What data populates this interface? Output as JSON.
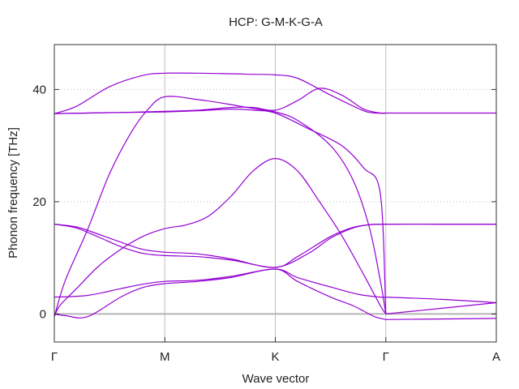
{
  "chart_data": {
    "type": "line",
    "title": "HCP: G-M-K-G-A",
    "xlabel": "Wave vector",
    "ylabel": "Phonon frequency [THz]",
    "xlim": [
      0,
      4
    ],
    "ylim": [
      -5,
      48
    ],
    "x_ticks": [
      {
        "value": 0,
        "label": "Γ"
      },
      {
        "value": 1,
        "label": "M"
      },
      {
        "value": 2,
        "label": "K"
      },
      {
        "value": 3,
        "label": "Γ"
      },
      {
        "value": 4,
        "label": "A"
      }
    ],
    "y_ticks": [
      0,
      20,
      40
    ],
    "grid": {
      "x": true,
      "y_dotted": true
    },
    "zero_line": true,
    "line_color": "#9400d3",
    "zero_line_color": "#b4b4b4",
    "grid_color": "#c0c0c0",
    "series": [
      {
        "x": [
          0,
          0.2,
          0.5,
          0.8,
          1.0,
          1.3,
          1.6,
          1.8,
          2.0,
          2.2,
          2.5,
          2.8,
          2.92,
          3.0,
          3.5,
          4.0
        ],
        "y": [
          35.7,
          37.0,
          40.5,
          42.5,
          42.9,
          42.9,
          42.8,
          42.7,
          42.6,
          42.0,
          39.0,
          36.2,
          35.8,
          35.8,
          35.8,
          35.8
        ]
      },
      {
        "x": [
          0,
          0.3,
          0.6,
          1.0,
          1.3,
          1.6,
          1.8,
          2.0,
          2.2,
          2.4,
          2.6,
          2.8,
          2.95,
          3.0
        ],
        "y": [
          35.7,
          35.8,
          35.9,
          36.1,
          36.3,
          36.8,
          36.8,
          36.3,
          38.0,
          40.2,
          39.0,
          36.5,
          35.8,
          35.8
        ]
      },
      {
        "x": [
          0,
          0.3,
          0.6,
          1.0,
          1.3,
          1.6,
          1.8,
          2.0,
          2.3,
          2.6,
          2.8,
          2.95,
          3.0
        ],
        "y": [
          35.7,
          35.8,
          35.9,
          36.0,
          36.2,
          36.5,
          36.3,
          35.8,
          33.0,
          30.0,
          26.0,
          21.5,
          0.0
        ]
      },
      {
        "x": [
          0,
          0.1,
          0.3,
          0.5,
          0.7,
          0.85,
          1.0,
          1.3,
          1.6,
          1.8,
          2.0,
          2.2,
          2.5,
          2.7,
          2.85,
          2.95,
          3.0
        ],
        "y": [
          -0.5,
          6.0,
          15.0,
          25.0,
          32.5,
          36.5,
          38.7,
          38.2,
          37.3,
          36.6,
          36.0,
          34.5,
          30.0,
          24.0,
          15.5,
          6.0,
          0.0
        ]
      },
      {
        "x": [
          0,
          0.05,
          0.2,
          0.4,
          0.6,
          0.8,
          1.0,
          1.2,
          1.4,
          1.6,
          1.8,
          2.0,
          2.2,
          2.4,
          2.6,
          2.8,
          2.95,
          3.0
        ],
        "y": [
          -0.5,
          1.5,
          4.5,
          8.5,
          11.5,
          13.8,
          15.2,
          15.9,
          17.5,
          21.0,
          25.5,
          27.7,
          25.5,
          20.0,
          14.0,
          7.0,
          1.5,
          0.0
        ]
      },
      {
        "x": [
          0,
          0.2,
          0.4,
          0.6,
          0.8,
          1.0,
          1.3,
          1.6,
          2.0,
          2.3,
          2.5,
          2.7,
          2.85,
          3.0,
          3.5,
          4.0
        ],
        "y": [
          16.0,
          15.5,
          14.2,
          12.8,
          11.5,
          11.0,
          10.7,
          9.8,
          8.3,
          10.8,
          13.5,
          15.3,
          15.9,
          16.0,
          16.0,
          16.0
        ]
      },
      {
        "x": [
          0,
          0.2,
          0.4,
          0.6,
          0.8,
          1.0,
          1.3,
          1.6,
          2.0,
          2.2,
          2.5,
          2.7,
          2.85,
          3.0,
          3.5,
          4.0
        ],
        "y": [
          16.0,
          15.3,
          13.7,
          12.0,
          10.8,
          10.4,
          10.2,
          9.6,
          8.3,
          10.2,
          13.8,
          15.4,
          15.9,
          16.0,
          16.0,
          16.0
        ]
      },
      {
        "x": [
          0,
          0.3,
          0.6,
          0.8,
          1.0,
          1.3,
          1.6,
          2.0,
          2.2,
          2.5,
          2.75,
          2.95,
          3.0
        ],
        "y": [
          3.0,
          3.3,
          4.5,
          5.3,
          5.8,
          6.0,
          6.7,
          8.0,
          6.5,
          4.8,
          3.5,
          3.0,
          3.0
        ]
      },
      {
        "x": [
          0,
          0.1,
          0.3,
          0.6,
          0.8,
          1.0,
          1.3,
          1.6,
          2.0,
          2.2,
          2.5,
          2.7,
          2.8,
          2.9,
          3.0
        ],
        "y": [
          0.0,
          -0.3,
          -0.5,
          3.0,
          4.7,
          5.4,
          5.8,
          6.5,
          8.0,
          5.8,
          3.0,
          1.5,
          0.5,
          -0.5,
          -1.0
        ]
      },
      {
        "x": [
          3.0,
          3.5,
          4.0
        ],
        "y": [
          3.0,
          2.6,
          2.0
        ]
      },
      {
        "x": [
          3.0,
          3.5,
          4.0
        ],
        "y": [
          0.0,
          1.0,
          2.0
        ]
      },
      {
        "x": [
          3.0,
          3.5,
          4.0
        ],
        "y": [
          -1.0,
          -0.9,
          -0.8
        ]
      }
    ]
  }
}
